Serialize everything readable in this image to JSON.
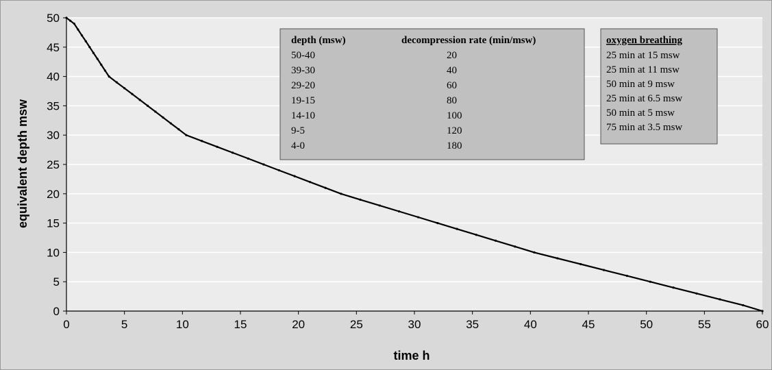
{
  "chart_data": {
    "type": "line",
    "title": "",
    "xlabel": "time h",
    "ylabel": "equivalent depth msw",
    "xlim": [
      0,
      60
    ],
    "ylim": [
      0,
      50
    ],
    "x_ticks": [
      0,
      5,
      10,
      15,
      20,
      25,
      30,
      35,
      40,
      45,
      50,
      55,
      60
    ],
    "y_ticks": [
      0,
      5,
      10,
      15,
      20,
      25,
      30,
      35,
      40,
      45,
      50
    ],
    "x_tick_labels": [
      "0",
      "5",
      "10",
      "15",
      "20",
      "25",
      "30",
      "35",
      "40",
      "45",
      "50",
      "55",
      "60"
    ],
    "y_tick_labels": [
      "0",
      "5",
      "10",
      "15",
      "20",
      "25",
      "30",
      "35",
      "40",
      "45",
      "50"
    ],
    "grid": {
      "horizontal": true,
      "vertical": false,
      "color": "#ffffff"
    },
    "plot_background": "#ececec",
    "line_color": "#000000",
    "legend": null,
    "series": [
      {
        "x": [
          0,
          0.33,
          0.67,
          1.0,
          1.33,
          1.67,
          2.0,
          2.33,
          2.67,
          3.0,
          3.33,
          3.67,
          4.33,
          5.0,
          5.67,
          6.33,
          7.0,
          7.67,
          8.33,
          9.0,
          9.67,
          10.33,
          11.67,
          13.0,
          14.33,
          15.67,
          17.0,
          18.33,
          19.67,
          21.0,
          22.33,
          23.67,
          25.33,
          27.0,
          28.67,
          30.33,
          32.0,
          33.67,
          35.33,
          37.0,
          38.67,
          40.33,
          42.33,
          44.33,
          46.33,
          48.33,
          50.33,
          52.33,
          54.33,
          56.33,
          58.33,
          60.33
        ],
        "y": [
          50,
          49.5,
          49,
          48,
          47,
          46,
          45,
          44,
          43,
          42,
          41,
          40,
          39,
          38,
          37,
          36,
          35,
          34,
          33,
          32,
          31,
          30,
          29,
          28,
          27,
          26,
          25,
          24,
          23,
          22,
          21,
          20,
          19,
          18,
          17,
          16,
          15,
          14,
          13,
          12,
          11,
          10,
          9,
          8,
          7,
          6,
          5,
          4,
          3,
          2,
          1,
          0
        ]
      }
    ],
    "tables": {
      "decompression": {
        "headers": [
          "depth (msw)",
          "decompression rate (min/msw)"
        ],
        "rows": [
          [
            "50-40",
            "20"
          ],
          [
            "39-30",
            "40"
          ],
          [
            "29-20",
            "60"
          ],
          [
            "19-15",
            "80"
          ],
          [
            "14-10",
            "100"
          ],
          [
            "9-5",
            "120"
          ],
          [
            "4-0",
            "180"
          ]
        ]
      },
      "oxygen": {
        "title": "oxygen breathing",
        "rows": [
          "25 min at 15 msw",
          "25 min at 11 msw",
          "50 min at 9 msw",
          "25 min at 6.5 msw",
          "50 min at 5 msw",
          "75 min at 3.5 msw"
        ]
      }
    },
    "table_background": "#c0c0c0"
  }
}
